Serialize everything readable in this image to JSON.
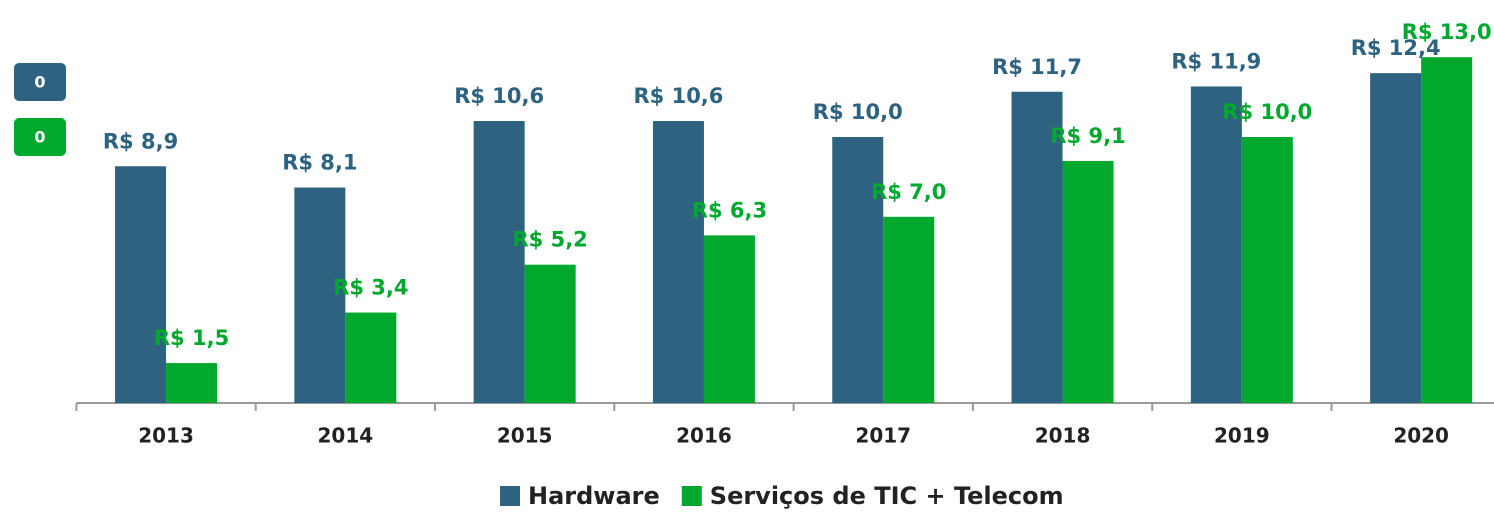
{
  "badges": [
    {
      "label": "0",
      "color": "#2d6380"
    },
    {
      "label": "0",
      "color": "#00a82d"
    }
  ],
  "chart_data": {
    "type": "bar",
    "categories": [
      "2013",
      "2014",
      "2015",
      "2016",
      "2017",
      "2018",
      "2019",
      "2020"
    ],
    "series": [
      {
        "name": "Hardware",
        "color": "#2d6380",
        "values": [
          8.9,
          8.1,
          10.6,
          10.6,
          10.0,
          11.7,
          11.9,
          12.4
        ],
        "value_labels": [
          "R$ 8,9",
          "R$ 8,1",
          "R$ 10,6",
          "R$ 10,6",
          "R$ 10,0",
          "R$ 11,7",
          "R$ 11,9",
          "R$ 12,4"
        ]
      },
      {
        "name": "Serviços de TIC + Telecom",
        "color": "#00a82d",
        "values": [
          1.5,
          3.4,
          5.2,
          6.3,
          7.0,
          9.1,
          10.0,
          13.0
        ],
        "value_labels": [
          "R$ 1,5",
          "R$ 3,4",
          "R$ 5,2",
          "R$ 6,3",
          "R$ 7,0",
          "R$ 9,1",
          "R$ 10,0",
          "R$ 13,0"
        ]
      }
    ],
    "ylim": [
      0,
      15
    ],
    "grid": false,
    "legend": "bottom"
  }
}
